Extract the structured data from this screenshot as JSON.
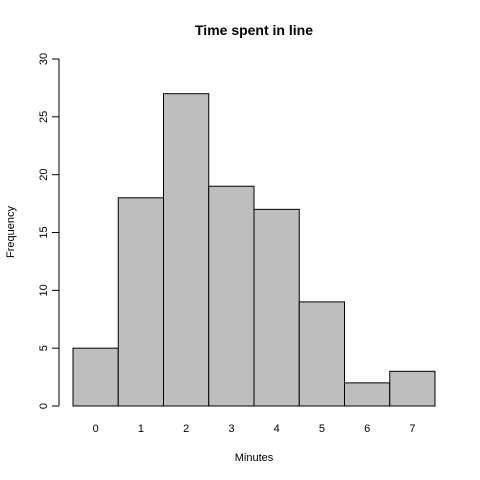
{
  "chart_data": {
    "type": "bar",
    "title": "Time spent in line",
    "xlabel": "Minutes",
    "ylabel": "Frequency",
    "categories": [
      "0",
      "1",
      "2",
      "3",
      "4",
      "5",
      "6",
      "7"
    ],
    "values": [
      5,
      18,
      27,
      19,
      17,
      9,
      2,
      3
    ],
    "color": "#bebebe",
    "ylim": [
      0,
      30
    ],
    "yticks": [
      0,
      5,
      10,
      15,
      20,
      25,
      30
    ],
    "grid": false
  }
}
